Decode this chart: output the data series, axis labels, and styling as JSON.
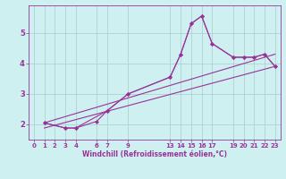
{
  "xlabel": "Windchill (Refroidissement éolien,°C)",
  "bg_color": "#cff0f0",
  "line_color": "#993399",
  "grid_color": "#aacccc",
  "xlim": [
    -0.5,
    23.5
  ],
  "ylim": [
    1.5,
    5.9
  ],
  "xtick_positions": [
    0,
    1,
    2,
    3,
    4,
    6,
    7,
    9,
    13,
    14,
    15,
    16,
    17,
    19,
    20,
    21,
    22,
    23
  ],
  "xtick_labels": [
    "0",
    "1",
    "2",
    "3",
    "4",
    "6",
    "7",
    "9",
    "13",
    "14",
    "15",
    "16",
    "17",
    "19",
    "20",
    "21",
    "22",
    "23"
  ],
  "ytick_positions": [
    2,
    3,
    4,
    5
  ],
  "ytick_labels": [
    "2",
    "3",
    "4",
    "5"
  ],
  "lines": [
    {
      "x": [
        1,
        3,
        4,
        7,
        9,
        13,
        14,
        15,
        16,
        17,
        19,
        20,
        21,
        22,
        23
      ],
      "y": [
        2.05,
        1.88,
        1.88,
        2.45,
        3.0,
        3.55,
        4.3,
        5.3,
        5.55,
        4.65,
        4.2,
        4.2,
        4.2,
        4.3,
        3.9
      ],
      "marker": true
    },
    {
      "x": [
        1,
        3,
        4,
        6,
        7,
        9,
        13,
        14,
        15,
        16,
        17,
        19,
        20,
        21,
        22,
        23
      ],
      "y": [
        2.05,
        1.88,
        1.88,
        2.1,
        2.45,
        3.0,
        3.55,
        4.3,
        5.3,
        5.55,
        4.65,
        4.2,
        4.2,
        4.2,
        4.3,
        3.9
      ],
      "marker": true
    },
    {
      "x": [
        1,
        23
      ],
      "y": [
        1.88,
        3.9
      ],
      "marker": false
    },
    {
      "x": [
        1,
        23
      ],
      "y": [
        2.05,
        4.3
      ],
      "marker": false
    }
  ]
}
